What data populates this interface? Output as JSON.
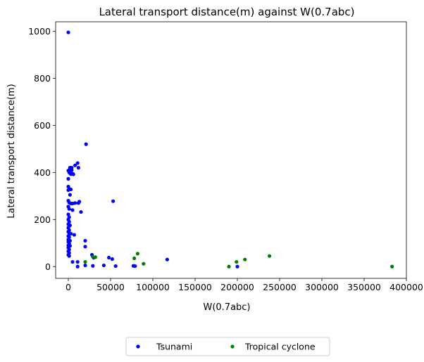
{
  "chart_data": {
    "type": "scatter",
    "title": "Lateral transport distance(m) against W(0.7abc)",
    "xlabel": "W(0.7abc)",
    "ylabel": "Lateral transport distance(m)",
    "xlim": [
      -15000,
      400000
    ],
    "ylim": [
      -50,
      1040
    ],
    "xticks": [
      0,
      50000,
      100000,
      150000,
      200000,
      250000,
      300000,
      350000,
      400000
    ],
    "yticks": [
      0,
      200,
      400,
      600,
      800,
      1000
    ],
    "legend_placement": "below-center",
    "grid": false,
    "series": [
      {
        "name": "Tsunami",
        "color": "#0000ff",
        "points": [
          [
            0,
            995
          ],
          [
            21000,
            520
          ],
          [
            53000,
            278
          ],
          [
            11000,
            440
          ],
          [
            8000,
            430
          ],
          [
            2000,
            420
          ],
          [
            4000,
            420
          ],
          [
            12000,
            420
          ],
          [
            0,
            408
          ],
          [
            1000,
            400
          ],
          [
            2000,
            397
          ],
          [
            3000,
            393
          ],
          [
            4000,
            410
          ],
          [
            5000,
            395
          ],
          [
            6000,
            392
          ],
          [
            0,
            373
          ],
          [
            0,
            340
          ],
          [
            0,
            325
          ],
          [
            1000,
            330
          ],
          [
            3000,
            328
          ],
          [
            2000,
            305
          ],
          [
            0,
            280
          ],
          [
            1000,
            272
          ],
          [
            3000,
            268
          ],
          [
            5000,
            268
          ],
          [
            8000,
            270
          ],
          [
            12000,
            270
          ],
          [
            13000,
            276
          ],
          [
            0,
            255
          ],
          [
            1000,
            245
          ],
          [
            5000,
            240
          ],
          [
            15000,
            232
          ],
          [
            0,
            222
          ],
          [
            1000,
            210
          ],
          [
            0,
            200
          ],
          [
            1000,
            190
          ],
          [
            0,
            180
          ],
          [
            2000,
            175
          ],
          [
            0,
            165
          ],
          [
            1000,
            155
          ],
          [
            0,
            148
          ],
          [
            1000,
            142
          ],
          [
            3000,
            140
          ],
          [
            7000,
            135
          ],
          [
            0,
            130
          ],
          [
            1000,
            125
          ],
          [
            0,
            115
          ],
          [
            2000,
            110
          ],
          [
            20000,
            110
          ],
          [
            0,
            105
          ],
          [
            1000,
            98
          ],
          [
            0,
            90
          ],
          [
            2000,
            88
          ],
          [
            20000,
            85
          ],
          [
            0,
            80
          ],
          [
            1000,
            72
          ],
          [
            0,
            65
          ],
          [
            1000,
            58
          ],
          [
            0,
            50
          ],
          [
            1000,
            45
          ],
          [
            28000,
            50
          ],
          [
            30000,
            38
          ],
          [
            48000,
            38
          ],
          [
            52000,
            32
          ],
          [
            117000,
            30
          ],
          [
            5000,
            20
          ],
          [
            11000,
            20
          ],
          [
            11000,
            0
          ],
          [
            20000,
            5
          ],
          [
            29000,
            3
          ],
          [
            42000,
            5
          ],
          [
            56000,
            2
          ],
          [
            77000,
            3
          ],
          [
            79000,
            2
          ],
          [
            200000,
            0
          ]
        ]
      },
      {
        "name": "Tropical cyclone",
        "color": "#008000",
        "points": [
          [
            20000,
            20
          ],
          [
            29000,
            42
          ],
          [
            32000,
            40
          ],
          [
            78000,
            35
          ],
          [
            82000,
            55
          ],
          [
            89000,
            12
          ],
          [
            190000,
            0
          ],
          [
            199000,
            20
          ],
          [
            209000,
            30
          ],
          [
            238000,
            45
          ],
          [
            383000,
            0
          ]
        ]
      }
    ]
  }
}
